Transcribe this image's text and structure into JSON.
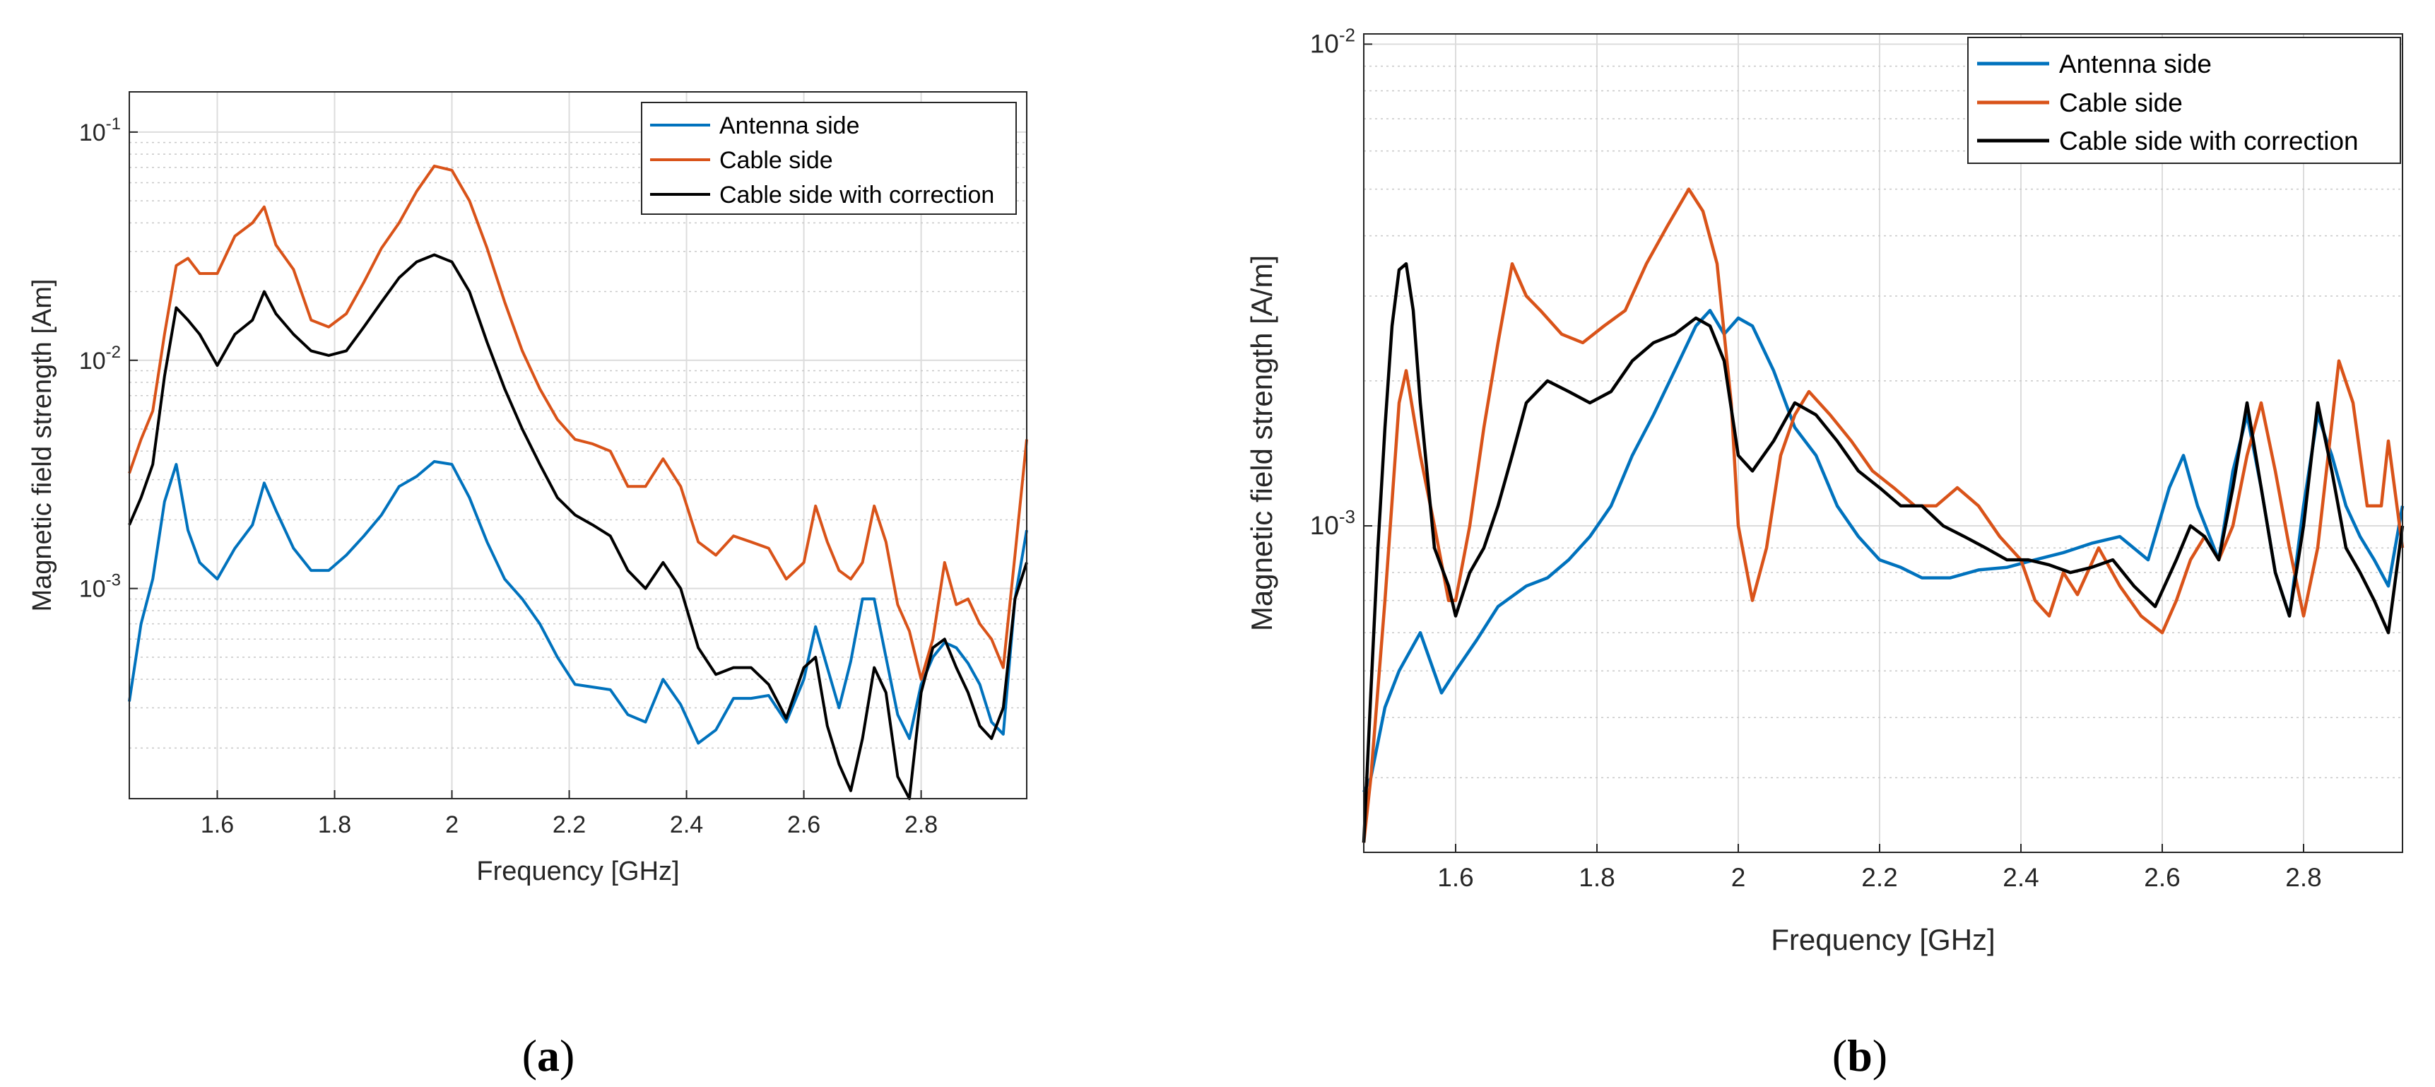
{
  "colors": {
    "antenna": "#0072BD",
    "cable": "#D95319",
    "correction": "#000000"
  },
  "chart_data": [
    {
      "type": "line",
      "panel_label": "(a)",
      "xlabel": "Frequency [GHz]",
      "ylabel": "Magnetic field strength [Am]",
      "xlim": [
        1.45,
        2.98
      ],
      "ylim": [
        0.00012,
        0.15
      ],
      "yscale": "log",
      "grid": true,
      "xticks": [
        {
          "value": 1.6,
          "label": "1.6"
        },
        {
          "value": 1.8,
          "label": "1.8"
        },
        {
          "value": 2.0,
          "label": "2"
        },
        {
          "value": 2.2,
          "label": "2.2"
        },
        {
          "value": 2.4,
          "label": "2.4"
        },
        {
          "value": 2.6,
          "label": "2.6"
        },
        {
          "value": 2.8,
          "label": "2.8"
        }
      ],
      "yticks": [
        {
          "value": 0.001,
          "base": "10",
          "exp": "-3"
        },
        {
          "value": 0.01,
          "base": "10",
          "exp": "-2"
        },
        {
          "value": 0.1,
          "base": "10",
          "exp": "-1"
        }
      ],
      "legend": {
        "position": "top-right",
        "entries": [
          "Antenna side",
          "Cable side",
          "Cable side with correction"
        ]
      },
      "series": [
        {
          "name": "Antenna side",
          "color_key": "antenna",
          "x": [
            1.45,
            1.47,
            1.49,
            1.51,
            1.53,
            1.55,
            1.57,
            1.6,
            1.63,
            1.66,
            1.68,
            1.7,
            1.73,
            1.76,
            1.79,
            1.82,
            1.85,
            1.88,
            1.91,
            1.94,
            1.97,
            2.0,
            2.03,
            2.06,
            2.09,
            2.12,
            2.15,
            2.18,
            2.21,
            2.24,
            2.27,
            2.3,
            2.33,
            2.36,
            2.39,
            2.42,
            2.45,
            2.48,
            2.51,
            2.54,
            2.57,
            2.6,
            2.62,
            2.64,
            2.66,
            2.68,
            2.7,
            2.72,
            2.74,
            2.76,
            2.78,
            2.8,
            2.82,
            2.84,
            2.86,
            2.88,
            2.9,
            2.92,
            2.94,
            2.96,
            2.98
          ],
          "values": [
            0.00032,
            0.0007,
            0.0011,
            0.0024,
            0.0035,
            0.0018,
            0.0013,
            0.0011,
            0.0015,
            0.0019,
            0.0029,
            0.0022,
            0.0015,
            0.0012,
            0.0012,
            0.0014,
            0.0017,
            0.0021,
            0.0028,
            0.0031,
            0.0036,
            0.0035,
            0.0025,
            0.0016,
            0.0011,
            0.0009,
            0.0007,
            0.0005,
            0.00038,
            0.00037,
            0.00036,
            0.00028,
            0.00026,
            0.0004,
            0.00031,
            0.00021,
            0.00024,
            0.00033,
            0.00033,
            0.00034,
            0.00026,
            0.0004,
            0.00068,
            0.00045,
            0.0003,
            0.00048,
            0.0009,
            0.0009,
            0.0005,
            0.00028,
            0.00022,
            0.00038,
            0.0005,
            0.00058,
            0.00055,
            0.00047,
            0.00038,
            0.00026,
            0.00023,
            0.0009,
            0.0018
          ]
        },
        {
          "name": "Cable side",
          "color_key": "cable",
          "x": [
            1.45,
            1.47,
            1.49,
            1.51,
            1.53,
            1.55,
            1.57,
            1.6,
            1.63,
            1.66,
            1.68,
            1.7,
            1.73,
            1.76,
            1.79,
            1.82,
            1.85,
            1.88,
            1.91,
            1.94,
            1.97,
            2.0,
            2.03,
            2.06,
            2.09,
            2.12,
            2.15,
            2.18,
            2.21,
            2.24,
            2.27,
            2.3,
            2.33,
            2.36,
            2.39,
            2.42,
            2.45,
            2.48,
            2.51,
            2.54,
            2.57,
            2.6,
            2.62,
            2.64,
            2.66,
            2.68,
            2.7,
            2.72,
            2.74,
            2.76,
            2.78,
            2.8,
            2.82,
            2.84,
            2.86,
            2.88,
            2.9,
            2.92,
            2.94,
            2.96,
            2.98
          ],
          "values": [
            0.0032,
            0.0045,
            0.006,
            0.013,
            0.026,
            0.028,
            0.024,
            0.024,
            0.035,
            0.04,
            0.047,
            0.032,
            0.025,
            0.015,
            0.014,
            0.016,
            0.022,
            0.031,
            0.04,
            0.055,
            0.071,
            0.068,
            0.05,
            0.031,
            0.018,
            0.011,
            0.0075,
            0.0055,
            0.0045,
            0.0043,
            0.004,
            0.0028,
            0.0028,
            0.0037,
            0.0028,
            0.0016,
            0.0014,
            0.0017,
            0.0016,
            0.0015,
            0.0011,
            0.0013,
            0.0023,
            0.0016,
            0.0012,
            0.0011,
            0.0013,
            0.0023,
            0.0016,
            0.00085,
            0.00065,
            0.0004,
            0.0006,
            0.0013,
            0.00085,
            0.0009,
            0.0007,
            0.0006,
            0.00045,
            0.0014,
            0.0045
          ]
        },
        {
          "name": "Cable side with correction",
          "color_key": "correction",
          "x": [
            1.45,
            1.47,
            1.49,
            1.51,
            1.53,
            1.55,
            1.57,
            1.6,
            1.63,
            1.66,
            1.68,
            1.7,
            1.73,
            1.76,
            1.79,
            1.82,
            1.85,
            1.88,
            1.91,
            1.94,
            1.97,
            2.0,
            2.03,
            2.06,
            2.09,
            2.12,
            2.15,
            2.18,
            2.21,
            2.24,
            2.27,
            2.3,
            2.33,
            2.36,
            2.39,
            2.42,
            2.45,
            2.48,
            2.51,
            2.54,
            2.57,
            2.6,
            2.62,
            2.64,
            2.66,
            2.68,
            2.7,
            2.72,
            2.74,
            2.76,
            2.78,
            2.8,
            2.82,
            2.84,
            2.86,
            2.88,
            2.9,
            2.92,
            2.94,
            2.96,
            2.98
          ],
          "values": [
            0.0019,
            0.0025,
            0.0035,
            0.0085,
            0.017,
            0.015,
            0.013,
            0.0095,
            0.013,
            0.015,
            0.02,
            0.016,
            0.013,
            0.011,
            0.0105,
            0.011,
            0.014,
            0.018,
            0.023,
            0.027,
            0.029,
            0.027,
            0.02,
            0.012,
            0.0075,
            0.005,
            0.0035,
            0.0025,
            0.0021,
            0.0019,
            0.0017,
            0.0012,
            0.001,
            0.0013,
            0.001,
            0.00055,
            0.00042,
            0.00045,
            0.00045,
            0.00038,
            0.00027,
            0.00045,
            0.0005,
            0.00025,
            0.00017,
            0.00013,
            0.00022,
            0.00045,
            0.00035,
            0.00015,
            0.00012,
            0.00035,
            0.00055,
            0.0006,
            0.00045,
            0.00035,
            0.00025,
            0.00022,
            0.0003,
            0.0009,
            0.0013
          ]
        }
      ]
    },
    {
      "type": "line",
      "panel_label": "(b)",
      "xlabel": "Frequency [GHz]",
      "ylabel": "Magnetic field strength [A/m]",
      "xlim": [
        1.47,
        2.94
      ],
      "ylim": [
        0.00021,
        0.0105
      ],
      "yscale": "log",
      "grid": true,
      "xticks": [
        {
          "value": 1.6,
          "label": "1.6"
        },
        {
          "value": 1.8,
          "label": "1.8"
        },
        {
          "value": 2.0,
          "label": "2"
        },
        {
          "value": 2.2,
          "label": "2.2"
        },
        {
          "value": 2.4,
          "label": "2.4"
        },
        {
          "value": 2.6,
          "label": "2.6"
        },
        {
          "value": 2.8,
          "label": "2.8"
        }
      ],
      "yticks": [
        {
          "value": 0.001,
          "base": "10",
          "exp": "-3"
        },
        {
          "value": 0.01,
          "base": "10",
          "exp": "-2"
        }
      ],
      "legend": {
        "position": "top-right",
        "entries": [
          "Antenna side",
          "Cable side",
          "Cable side with correction"
        ]
      },
      "series": [
        {
          "name": "Antenna side",
          "color_key": "antenna",
          "x": [
            1.47,
            1.48,
            1.5,
            1.52,
            1.55,
            1.58,
            1.6,
            1.63,
            1.66,
            1.7,
            1.73,
            1.76,
            1.79,
            1.82,
            1.85,
            1.88,
            1.91,
            1.94,
            1.96,
            1.98,
            2.0,
            2.02,
            2.05,
            2.08,
            2.11,
            2.14,
            2.17,
            2.2,
            2.23,
            2.26,
            2.3,
            2.34,
            2.38,
            2.42,
            2.46,
            2.5,
            2.54,
            2.58,
            2.61,
            2.63,
            2.65,
            2.68,
            2.7,
            2.72,
            2.74,
            2.76,
            2.78,
            2.8,
            2.82,
            2.84,
            2.86,
            2.88,
            2.9,
            2.92,
            2.94
          ],
          "values": [
            0.00028,
            0.0003,
            0.00042,
            0.0005,
            0.0006,
            0.00045,
            0.0005,
            0.00058,
            0.00068,
            0.00075,
            0.00078,
            0.00085,
            0.00095,
            0.0011,
            0.0014,
            0.0017,
            0.0021,
            0.0026,
            0.0028,
            0.0025,
            0.0027,
            0.0026,
            0.0021,
            0.0016,
            0.0014,
            0.0011,
            0.00095,
            0.00085,
            0.00082,
            0.00078,
            0.00078,
            0.00081,
            0.00082,
            0.00085,
            0.00088,
            0.00092,
            0.00095,
            0.00085,
            0.0012,
            0.0014,
            0.0011,
            0.00085,
            0.0013,
            0.0017,
            0.0012,
            0.0008,
            0.00065,
            0.0011,
            0.0017,
            0.0014,
            0.0011,
            0.00095,
            0.00085,
            0.00075,
            0.0011
          ]
        },
        {
          "name": "Cable side",
          "color_key": "cable",
          "x": [
            1.47,
            1.48,
            1.5,
            1.52,
            1.53,
            1.55,
            1.57,
            1.59,
            1.6,
            1.62,
            1.64,
            1.66,
            1.68,
            1.7,
            1.72,
            1.75,
            1.78,
            1.81,
            1.84,
            1.87,
            1.9,
            1.93,
            1.95,
            1.97,
            1.99,
            2.0,
            2.02,
            2.04,
            2.06,
            2.08,
            2.1,
            2.13,
            2.16,
            2.19,
            2.22,
            2.25,
            2.28,
            2.31,
            2.34,
            2.37,
            2.4,
            2.42,
            2.44,
            2.46,
            2.48,
            2.51,
            2.54,
            2.57,
            2.6,
            2.62,
            2.64,
            2.66,
            2.68,
            2.7,
            2.72,
            2.74,
            2.76,
            2.78,
            2.8,
            2.82,
            2.85,
            2.87,
            2.89,
            2.91,
            2.92,
            2.94
          ],
          "values": [
            0.00022,
            0.0003,
            0.0007,
            0.0018,
            0.0021,
            0.0014,
            0.001,
            0.0007,
            0.0007,
            0.001,
            0.0016,
            0.0024,
            0.0035,
            0.003,
            0.0028,
            0.0025,
            0.0024,
            0.0026,
            0.0028,
            0.0035,
            0.0042,
            0.005,
            0.0045,
            0.0035,
            0.0018,
            0.001,
            0.0007,
            0.0009,
            0.0014,
            0.0017,
            0.0019,
            0.0017,
            0.0015,
            0.0013,
            0.0012,
            0.0011,
            0.0011,
            0.0012,
            0.0011,
            0.00095,
            0.00085,
            0.0007,
            0.00065,
            0.0008,
            0.00072,
            0.0009,
            0.00075,
            0.00065,
            0.0006,
            0.0007,
            0.00085,
            0.00095,
            0.00085,
            0.001,
            0.0014,
            0.0018,
            0.0013,
            0.0009,
            0.00065,
            0.0009,
            0.0022,
            0.0018,
            0.0011,
            0.0011,
            0.0015,
            0.0009
          ]
        },
        {
          "name": "Cable side with correction",
          "color_key": "correction",
          "x": [
            1.47,
            1.48,
            1.49,
            1.5,
            1.51,
            1.52,
            1.53,
            1.54,
            1.55,
            1.57,
            1.59,
            1.6,
            1.62,
            1.64,
            1.66,
            1.68,
            1.7,
            1.73,
            1.76,
            1.79,
            1.82,
            1.85,
            1.88,
            1.91,
            1.94,
            1.96,
            1.98,
            2.0,
            2.02,
            2.05,
            2.08,
            2.11,
            2.14,
            2.17,
            2.2,
            2.23,
            2.26,
            2.29,
            2.32,
            2.35,
            2.38,
            2.41,
            2.44,
            2.47,
            2.5,
            2.53,
            2.56,
            2.59,
            2.62,
            2.64,
            2.66,
            2.68,
            2.7,
            2.72,
            2.74,
            2.76,
            2.78,
            2.8,
            2.82,
            2.84,
            2.86,
            2.88,
            2.9,
            2.92,
            2.94
          ],
          "values": [
            0.00022,
            0.00045,
            0.0009,
            0.0016,
            0.0026,
            0.0034,
            0.0035,
            0.0028,
            0.0018,
            0.0009,
            0.00075,
            0.00065,
            0.0008,
            0.0009,
            0.0011,
            0.0014,
            0.0018,
            0.002,
            0.0019,
            0.0018,
            0.0019,
            0.0022,
            0.0024,
            0.0025,
            0.0027,
            0.0026,
            0.0022,
            0.0014,
            0.0013,
            0.0015,
            0.0018,
            0.0017,
            0.0015,
            0.0013,
            0.0012,
            0.0011,
            0.0011,
            0.001,
            0.00095,
            0.0009,
            0.00085,
            0.00085,
            0.00083,
            0.0008,
            0.00082,
            0.00085,
            0.00075,
            0.00068,
            0.00085,
            0.001,
            0.00095,
            0.00085,
            0.0012,
            0.0018,
            0.0012,
            0.0008,
            0.00065,
            0.001,
            0.0018,
            0.0013,
            0.0009,
            0.0008,
            0.0007,
            0.0006,
            0.001
          ]
        }
      ]
    }
  ]
}
